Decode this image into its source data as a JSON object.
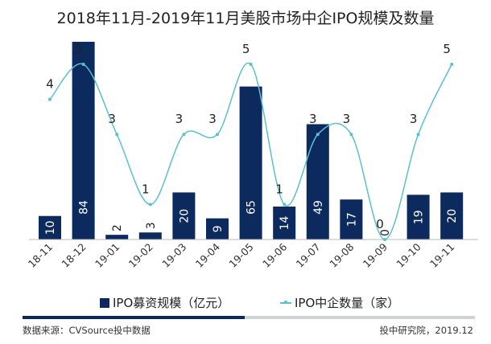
{
  "chart_data": {
    "type": "bar+line",
    "title": "2018年11月-2019年11月美股市场中企IPO规模及数量",
    "categories": [
      "18-11",
      "18-12",
      "19-01",
      "19-02",
      "19-03",
      "19-04",
      "19-05",
      "19-06",
      "19-07",
      "19-08",
      "19-09",
      "19-10",
      "19-11"
    ],
    "series": [
      {
        "name": "IPO募资规模（亿元）",
        "type": "bar",
        "color": "#0d2a5e",
        "values": [
          10,
          84,
          2,
          3,
          20,
          9,
          65,
          14,
          49,
          17,
          0,
          19,
          20
        ]
      },
      {
        "name": "IPO中企数量（家）",
        "type": "line",
        "smooth": true,
        "color": "#5bc0d0",
        "values": [
          4,
          5,
          3,
          1,
          3,
          3,
          5,
          1,
          3,
          3,
          0,
          3,
          5
        ]
      }
    ],
    "bar_ylim": [
      0,
      84
    ],
    "line_ylim": [
      0,
      5
    ],
    "grid": false,
    "legend_position": "bottom"
  },
  "footer": {
    "source": "数据来源：CVSource投中数据",
    "credit": "投中研究院，2019.12"
  }
}
